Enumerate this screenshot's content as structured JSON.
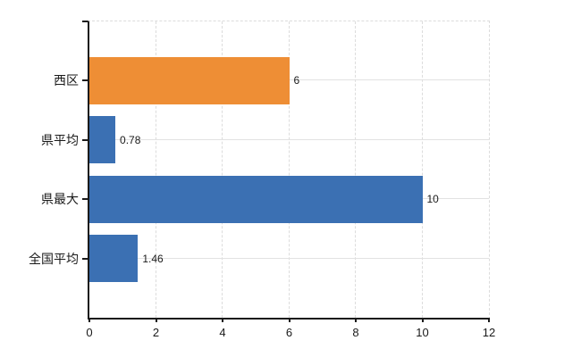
{
  "chart_data": {
    "type": "bar",
    "orientation": "horizontal",
    "title": "",
    "xlabel": "",
    "ylabel": "",
    "categories": [
      "西区",
      "県平均",
      "県最大",
      "全国平均"
    ],
    "values": [
      6,
      0.78,
      10,
      1.46
    ],
    "value_labels": [
      "6",
      "0.78",
      "10",
      "1.46"
    ],
    "bar_colors": [
      "#ee8e35",
      "#3b70b3",
      "#3b70b3",
      "#3b70b3"
    ],
    "xticks": [
      0,
      2,
      4,
      6,
      8,
      10,
      12
    ],
    "xtick_labels": [
      "0",
      "2",
      "4",
      "6",
      "8",
      "10",
      "12"
    ],
    "xlim": [
      0,
      12
    ],
    "grid": true,
    "legend": "none",
    "colors": {
      "accent_orange": "#ee8e35",
      "accent_blue": "#3b70b3",
      "gridline": "#dcdcdc",
      "axis": "#1a1a1a",
      "background": "#ffffff"
    }
  }
}
